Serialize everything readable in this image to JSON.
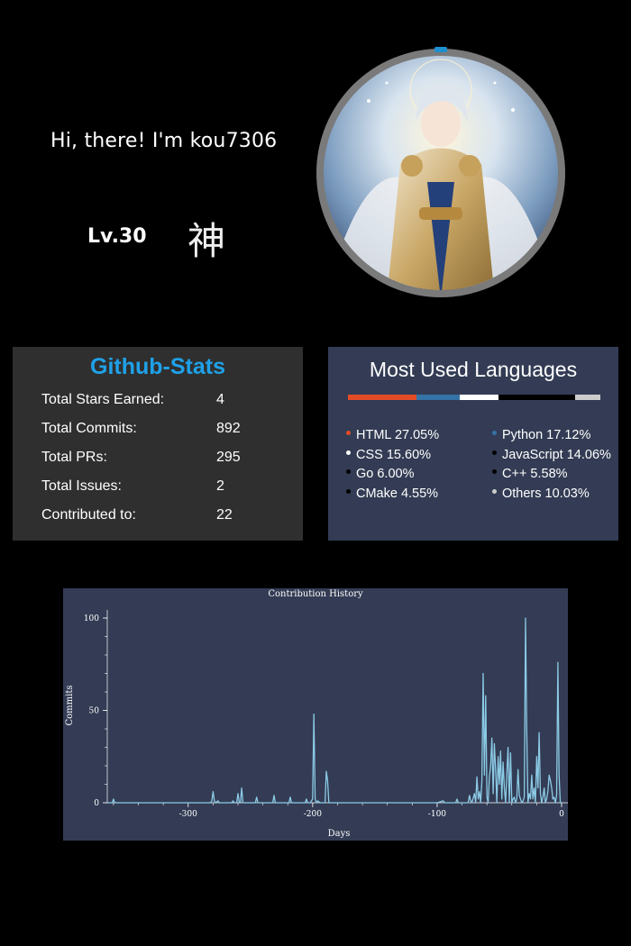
{
  "profile": {
    "greeting": "Hi, there! I'm kou7306",
    "level": "Lv.30",
    "rank_kanji": "神"
  },
  "colors": {
    "background": "#000000",
    "stats_card_bg": "#2f2f2f",
    "stats_title": "#1fa1e8",
    "lang_card_bg": "#333c54",
    "avatar_ring": "#7a7a7a",
    "chart_line": "#8ccbe6"
  },
  "github_stats": {
    "title": "Github-Stats",
    "rows": [
      {
        "label": "Total Stars Earned:",
        "value": "4"
      },
      {
        "label": "Total Commits:",
        "value": "892"
      },
      {
        "label": "Total PRs:",
        "value": "295"
      },
      {
        "label": "Total Issues:",
        "value": "2"
      },
      {
        "label": "Contributed to:",
        "value": "22"
      }
    ]
  },
  "languages": {
    "title": "Most Used Languages",
    "items": [
      {
        "name": "HTML",
        "percent": 27.05,
        "text": "HTML 27.05%",
        "color": "#e34c26"
      },
      {
        "name": "Python",
        "percent": 17.12,
        "text": "Python 17.12%",
        "color": "#3572a5"
      },
      {
        "name": "CSS",
        "percent": 15.6,
        "text": "CSS 15.60%",
        "color": "#ffffff"
      },
      {
        "name": "JavaScript",
        "percent": 14.06,
        "text": "JavaScript 14.06%",
        "color": "#000000"
      },
      {
        "name": "Go",
        "percent": 6.0,
        "text": "Go 6.00%",
        "color": "#000000"
      },
      {
        "name": "C++",
        "percent": 5.58,
        "text": "C++ 5.58%",
        "color": "#000000"
      },
      {
        "name": "CMake",
        "percent": 4.55,
        "text": "CMake 4.55%",
        "color": "#000000"
      },
      {
        "name": "Others",
        "percent": 10.03,
        "text": "Others 10.03%",
        "color": "#cccccc"
      }
    ]
  },
  "chart_data": {
    "type": "line",
    "title": "Contribution History",
    "xlabel": "Days",
    "ylabel": "Commits",
    "xlim": [
      -365,
      0
    ],
    "ylim": [
      0,
      100
    ],
    "xticks": [
      -300,
      -200,
      -100,
      0
    ],
    "yticks": [
      0,
      50,
      100
    ],
    "grid": false,
    "series": [
      {
        "values": [
          [
            -365,
            0
          ],
          [
            -361,
            0
          ],
          [
            -360,
            2
          ],
          [
            -359,
            0
          ],
          [
            -300,
            0
          ],
          [
            -282,
            0
          ],
          [
            -281,
            1
          ],
          [
            -280,
            6
          ],
          [
            -279,
            1
          ],
          [
            -278,
            0
          ],
          [
            -276,
            1
          ],
          [
            -275,
            0
          ],
          [
            -265,
            0
          ],
          [
            -264,
            1
          ],
          [
            -263,
            0
          ],
          [
            -261,
            0
          ],
          [
            -260,
            5
          ],
          [
            -259,
            0
          ],
          [
            -258,
            0
          ],
          [
            -257,
            8
          ],
          [
            -256,
            0
          ],
          [
            -246,
            0
          ],
          [
            -245,
            3
          ],
          [
            -244,
            0
          ],
          [
            -232,
            0
          ],
          [
            -231,
            4
          ],
          [
            -230,
            0
          ],
          [
            -219,
            0
          ],
          [
            -218,
            3
          ],
          [
            -217,
            0
          ],
          [
            -206,
            0
          ],
          [
            -205,
            2
          ],
          [
            -204,
            0
          ],
          [
            -202,
            0
          ],
          [
            -201,
            1
          ],
          [
            -200,
            2
          ],
          [
            -199,
            48
          ],
          [
            -198,
            2
          ],
          [
            -197,
            0
          ],
          [
            -196,
            1
          ],
          [
            -194,
            0
          ],
          [
            -190,
            0
          ],
          [
            -189,
            17
          ],
          [
            -188,
            12
          ],
          [
            -187,
            0
          ],
          [
            -100,
            0
          ],
          [
            -95,
            1
          ],
          [
            -94,
            0
          ],
          [
            -85,
            0
          ],
          [
            -84,
            2
          ],
          [
            -83,
            0
          ],
          [
            -75,
            0
          ],
          [
            -74,
            4
          ],
          [
            -73,
            1
          ],
          [
            -72,
            0
          ],
          [
            -70,
            5
          ],
          [
            -69,
            0
          ],
          [
            -68,
            14
          ],
          [
            -67,
            2
          ],
          [
            -66,
            6
          ],
          [
            -65,
            0
          ],
          [
            -64,
            12
          ],
          [
            -63,
            70
          ],
          [
            -62,
            15
          ],
          [
            -61,
            58
          ],
          [
            -60,
            3
          ],
          [
            -59,
            0
          ],
          [
            -58,
            14
          ],
          [
            -57,
            20
          ],
          [
            -56,
            35
          ],
          [
            -55,
            5
          ],
          [
            -54,
            32
          ],
          [
            -53,
            18
          ],
          [
            -52,
            0
          ],
          [
            -51,
            25
          ],
          [
            -50,
            10
          ],
          [
            -49,
            28
          ],
          [
            -48,
            2
          ],
          [
            -47,
            22
          ],
          [
            -46,
            8
          ],
          [
            -45,
            0
          ],
          [
            -44,
            15
          ],
          [
            -43,
            30
          ],
          [
            -42,
            0
          ],
          [
            -41,
            27
          ],
          [
            -40,
            0
          ],
          [
            -39,
            2
          ],
          [
            -38,
            3
          ],
          [
            -37,
            0
          ],
          [
            -36,
            2
          ],
          [
            -35,
            18
          ],
          [
            -34,
            4
          ],
          [
            -33,
            2
          ],
          [
            -32,
            0
          ],
          [
            -31,
            1
          ],
          [
            -30,
            3
          ],
          [
            -29,
            100
          ],
          [
            -28,
            40
          ],
          [
            -27,
            0
          ],
          [
            -26,
            5
          ],
          [
            -25,
            2
          ],
          [
            -24,
            15
          ],
          [
            -23,
            2
          ],
          [
            -22,
            8
          ],
          [
            -21,
            0
          ],
          [
            -20,
            25
          ],
          [
            -19,
            8
          ],
          [
            -18,
            38
          ],
          [
            -17,
            5
          ],
          [
            -16,
            0
          ],
          [
            -15,
            3
          ],
          [
            -14,
            8
          ],
          [
            -13,
            0
          ],
          [
            -12,
            2
          ],
          [
            -11,
            6
          ],
          [
            -10,
            15
          ],
          [
            -9,
            12
          ],
          [
            -8,
            8
          ],
          [
            -7,
            2
          ],
          [
            -6,
            3
          ],
          [
            -5,
            0
          ],
          [
            -4,
            4
          ],
          [
            -3,
            76
          ],
          [
            -2,
            15
          ],
          [
            -1,
            0
          ],
          [
            0,
            0
          ]
        ]
      }
    ]
  }
}
